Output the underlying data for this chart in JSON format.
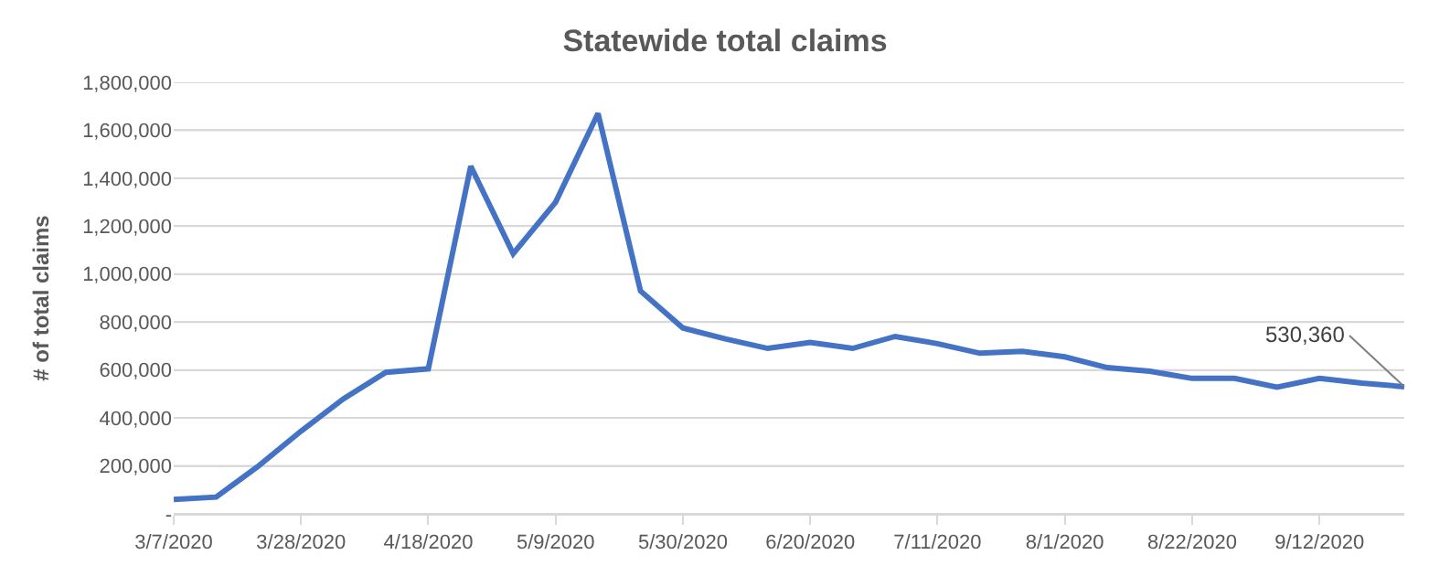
{
  "chart_data": {
    "type": "line",
    "title": "Statewide total claims",
    "ylabel": "# of total claims",
    "x": [
      "2020-03-07",
      "2020-03-14",
      "2020-03-21",
      "2020-03-28",
      "2020-04-04",
      "2020-04-11",
      "2020-04-18",
      "2020-04-25",
      "2020-05-02",
      "2020-05-09",
      "2020-05-16",
      "2020-05-23",
      "2020-05-30",
      "2020-06-06",
      "2020-06-13",
      "2020-06-20",
      "2020-06-27",
      "2020-07-04",
      "2020-07-11",
      "2020-07-18",
      "2020-07-25",
      "2020-08-01",
      "2020-08-08",
      "2020-08-15",
      "2020-08-22",
      "2020-08-29",
      "2020-09-05",
      "2020-09-12",
      "2020-09-19",
      "2020-09-26"
    ],
    "series": [
      {
        "color": "#4472c4",
        "values": [
          60000,
          70000,
          200000,
          345000,
          480000,
          590000,
          605000,
          1450000,
          1085000,
          1300000,
          1670000,
          930000,
          775000,
          730000,
          690000,
          715000,
          690000,
          740000,
          710000,
          670000,
          678000,
          655000,
          610000,
          595000,
          565000,
          565000,
          528000,
          565000,
          545000,
          530360
        ],
        "value_labels": [
          null,
          null,
          null,
          null,
          null,
          null,
          null,
          null,
          null,
          null,
          null,
          null,
          null,
          null,
          null,
          null,
          null,
          null,
          null,
          null,
          null,
          null,
          null,
          null,
          null,
          null,
          null,
          null,
          null,
          "530,360"
        ]
      }
    ],
    "xlim": [
      "2020-03-07",
      "2020-09-26"
    ],
    "xticks": [
      {
        "value": "2020-03-07",
        "label": "3/7/2020"
      },
      {
        "value": "2020-03-28",
        "label": "3/28/2020"
      },
      {
        "value": "2020-04-18",
        "label": "4/18/2020"
      },
      {
        "value": "2020-05-09",
        "label": "5/9/2020"
      },
      {
        "value": "2020-05-30",
        "label": "5/30/2020"
      },
      {
        "value": "2020-06-20",
        "label": "6/20/2020"
      },
      {
        "value": "2020-07-11",
        "label": "7/11/2020"
      },
      {
        "value": "2020-08-01",
        "label": "8/1/2020"
      },
      {
        "value": "2020-08-22",
        "label": "8/22/2020"
      },
      {
        "value": "2020-09-12",
        "label": "9/12/2020"
      }
    ],
    "ylim": [
      0,
      1800000
    ],
    "yticks": [
      {
        "value": 0,
        "label": "-"
      },
      {
        "value": 200000,
        "label": "200,000"
      },
      {
        "value": 400000,
        "label": "400,000"
      },
      {
        "value": 600000,
        "label": "600,000"
      },
      {
        "value": 800000,
        "label": "800,000"
      },
      {
        "value": 1000000,
        "label": "1,000,000"
      },
      {
        "value": 1200000,
        "label": "1,200,000"
      },
      {
        "value": 1400000,
        "label": "1,400,000"
      },
      {
        "value": 1600000,
        "label": "1,600,000"
      },
      {
        "value": 1800000,
        "label": "1,800,000"
      }
    ],
    "grid": "y",
    "marker": "none",
    "line_style": "solid"
  }
}
